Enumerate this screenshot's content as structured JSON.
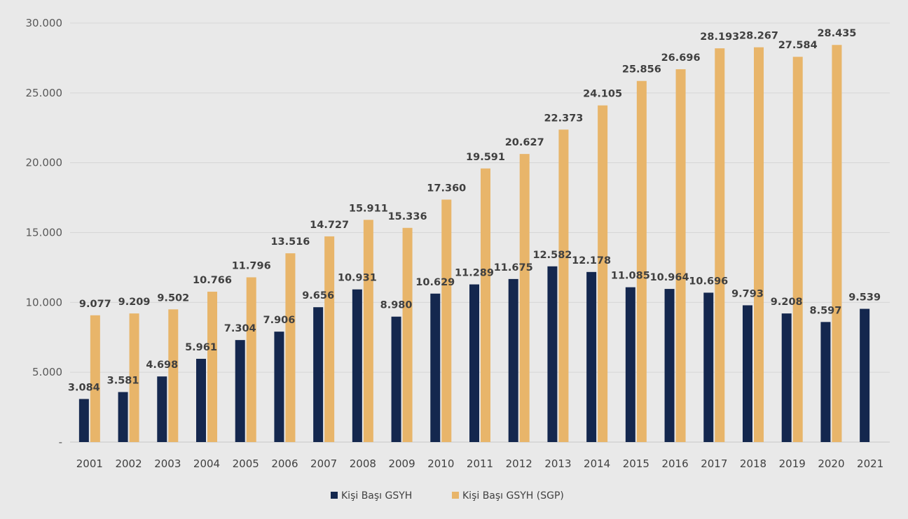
{
  "chart_data": {
    "type": "bar",
    "title": "",
    "xlabel": "",
    "ylabel": "",
    "ylim": [
      0,
      30000
    ],
    "yticks": [
      0,
      5000,
      10000,
      15000,
      20000,
      25000,
      30000
    ],
    "ytick_labels": [
      "-",
      "5.000",
      "10.000",
      "15.000",
      "20.000",
      "25.000",
      "30.000"
    ],
    "grid": "horizontal",
    "legend_position": "bottom",
    "categories": [
      "2001",
      "2002",
      "2003",
      "2004",
      "2005",
      "2006",
      "2007",
      "2008",
      "2009",
      "2010",
      "2011",
      "2012",
      "2013",
      "2014",
      "2015",
      "2016",
      "2017",
      "2018",
      "2019",
      "2020",
      "2021"
    ],
    "series": [
      {
        "name": "Kişi Başı GSYH",
        "color": "#14274e",
        "values": [
          3084,
          3581,
          4698,
          5961,
          7304,
          7906,
          9656,
          10931,
          8980,
          10629,
          11289,
          11675,
          12582,
          12178,
          11085,
          10964,
          10696,
          9793,
          9208,
          8597,
          9539
        ],
        "labels": [
          "3.084",
          "3.581",
          "4.698",
          "5.961",
          "7.304",
          "7.906",
          "9.656",
          "10.931",
          "8.980",
          "10.629",
          "11.289",
          "11.675",
          "12.582",
          "12.178",
          "11.085",
          "10.964",
          "10.696",
          "9.793",
          "9.208",
          "8.597",
          "9.539"
        ]
      },
      {
        "name": "Kişi Başı GSYH (SGP)",
        "color": "#e8b56a",
        "values": [
          9077,
          9209,
          9502,
          10766,
          11796,
          13516,
          14727,
          15911,
          15336,
          17360,
          19591,
          20627,
          22373,
          24105,
          25856,
          26696,
          28193,
          28267,
          27584,
          28435,
          null
        ],
        "labels": [
          "9.077",
          "9.209",
          "9.502",
          "10.766",
          "11.796",
          "13.516",
          "14.727",
          "15.911",
          "15.336",
          "17.360",
          "19.591",
          "20.627",
          "22.373",
          "24.105",
          "25.856",
          "26.696",
          "28.193",
          "28.267",
          "27.584",
          "28.435",
          ""
        ]
      }
    ]
  }
}
